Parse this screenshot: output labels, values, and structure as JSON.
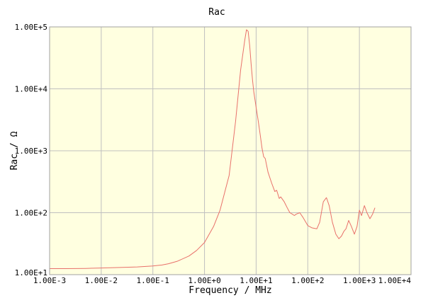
{
  "chart_data": {
    "type": "line",
    "title": "Rac",
    "xlabel": "Frequency / MHz",
    "ylabel": "Rac / Ω",
    "xscale": "log",
    "yscale": "log",
    "xlim": [
      0.001,
      10000
    ],
    "ylim": [
      10,
      100000
    ],
    "grid": true,
    "legend": "none",
    "x_ticks": [
      {
        "value": 0.001,
        "label": "1.00E-3"
      },
      {
        "value": 0.01,
        "label": "1.00E-2"
      },
      {
        "value": 0.1,
        "label": "1.00E-1"
      },
      {
        "value": 1,
        "label": "1.00E+0"
      },
      {
        "value": 10,
        "label": "1.00E+1"
      },
      {
        "value": 100,
        "label": "1.00E+2"
      },
      {
        "value": 1000,
        "label": "1.00E+3"
      },
      {
        "value": 10000,
        "label": "1.00E+4"
      }
    ],
    "y_ticks": [
      {
        "value": 10,
        "label": "1.00E+1"
      },
      {
        "value": 100,
        "label": "1.00E+2"
      },
      {
        "value": 1000,
        "label": "1.00E+3"
      },
      {
        "value": 10000,
        "label": "1.00E+4"
      },
      {
        "value": 100000,
        "label": "1.00E+5"
      }
    ],
    "colors": {
      "plot_background": "#ffffe0",
      "line": "#e8706a",
      "grid": "#c0c0c0",
      "frame": "#a0a0a0"
    },
    "series": [
      {
        "x": [
          0.001,
          0.002,
          0.005,
          0.01,
          0.02,
          0.05,
          0.1,
          0.15,
          0.2,
          0.3,
          0.5,
          0.7,
          1.0,
          1.5,
          2.0,
          3.0,
          4.0,
          5.0,
          6.0,
          6.5,
          7.0,
          7.5,
          8.0,
          8.5,
          9.0,
          10.0,
          11.0,
          12.0,
          13.0,
          14.0,
          15.0,
          17.0,
          20.0,
          23.0,
          25.0,
          28.0,
          30.0,
          35.0,
          40.0,
          45.0,
          50.0,
          55.0,
          60.0,
          70.0,
          80.0,
          100.0,
          120.0,
          150.0,
          170.0,
          200.0,
          230.0,
          260.0,
          300.0,
          350.0,
          400.0,
          450.0,
          500.0,
          550.0,
          620.0,
          700.0,
          800.0,
          900.0,
          1000.0,
          1100.0,
          1250.0,
          1400.0,
          1600.0,
          1800.0,
          2000.0
        ],
        "y": [
          12.5,
          12.5,
          12.6,
          12.8,
          13.0,
          13.3,
          13.8,
          14.3,
          15.0,
          16.5,
          20.0,
          24.5,
          33.0,
          60.0,
          110.0,
          400.0,
          3000.0,
          20000.0,
          60000.0,
          90000.0,
          85000.0,
          50000.0,
          25000.0,
          14000.0,
          9000.0,
          5000.0,
          3000.0,
          1800.0,
          1100.0,
          800.0,
          750.0,
          450.0,
          300.0,
          220.0,
          230.0,
          170.0,
          180.0,
          150.0,
          120.0,
          100.0,
          95.0,
          90.0,
          95.0,
          100.0,
          85.0,
          62.0,
          57.0,
          55.0,
          70.0,
          150.0,
          175.0,
          130.0,
          70.0,
          45.0,
          38.0,
          42.0,
          50.0,
          55.0,
          75.0,
          60.0,
          45.0,
          60.0,
          110.0,
          90.0,
          130.0,
          100.0,
          80.0,
          95.0,
          120.0
        ]
      }
    ]
  }
}
